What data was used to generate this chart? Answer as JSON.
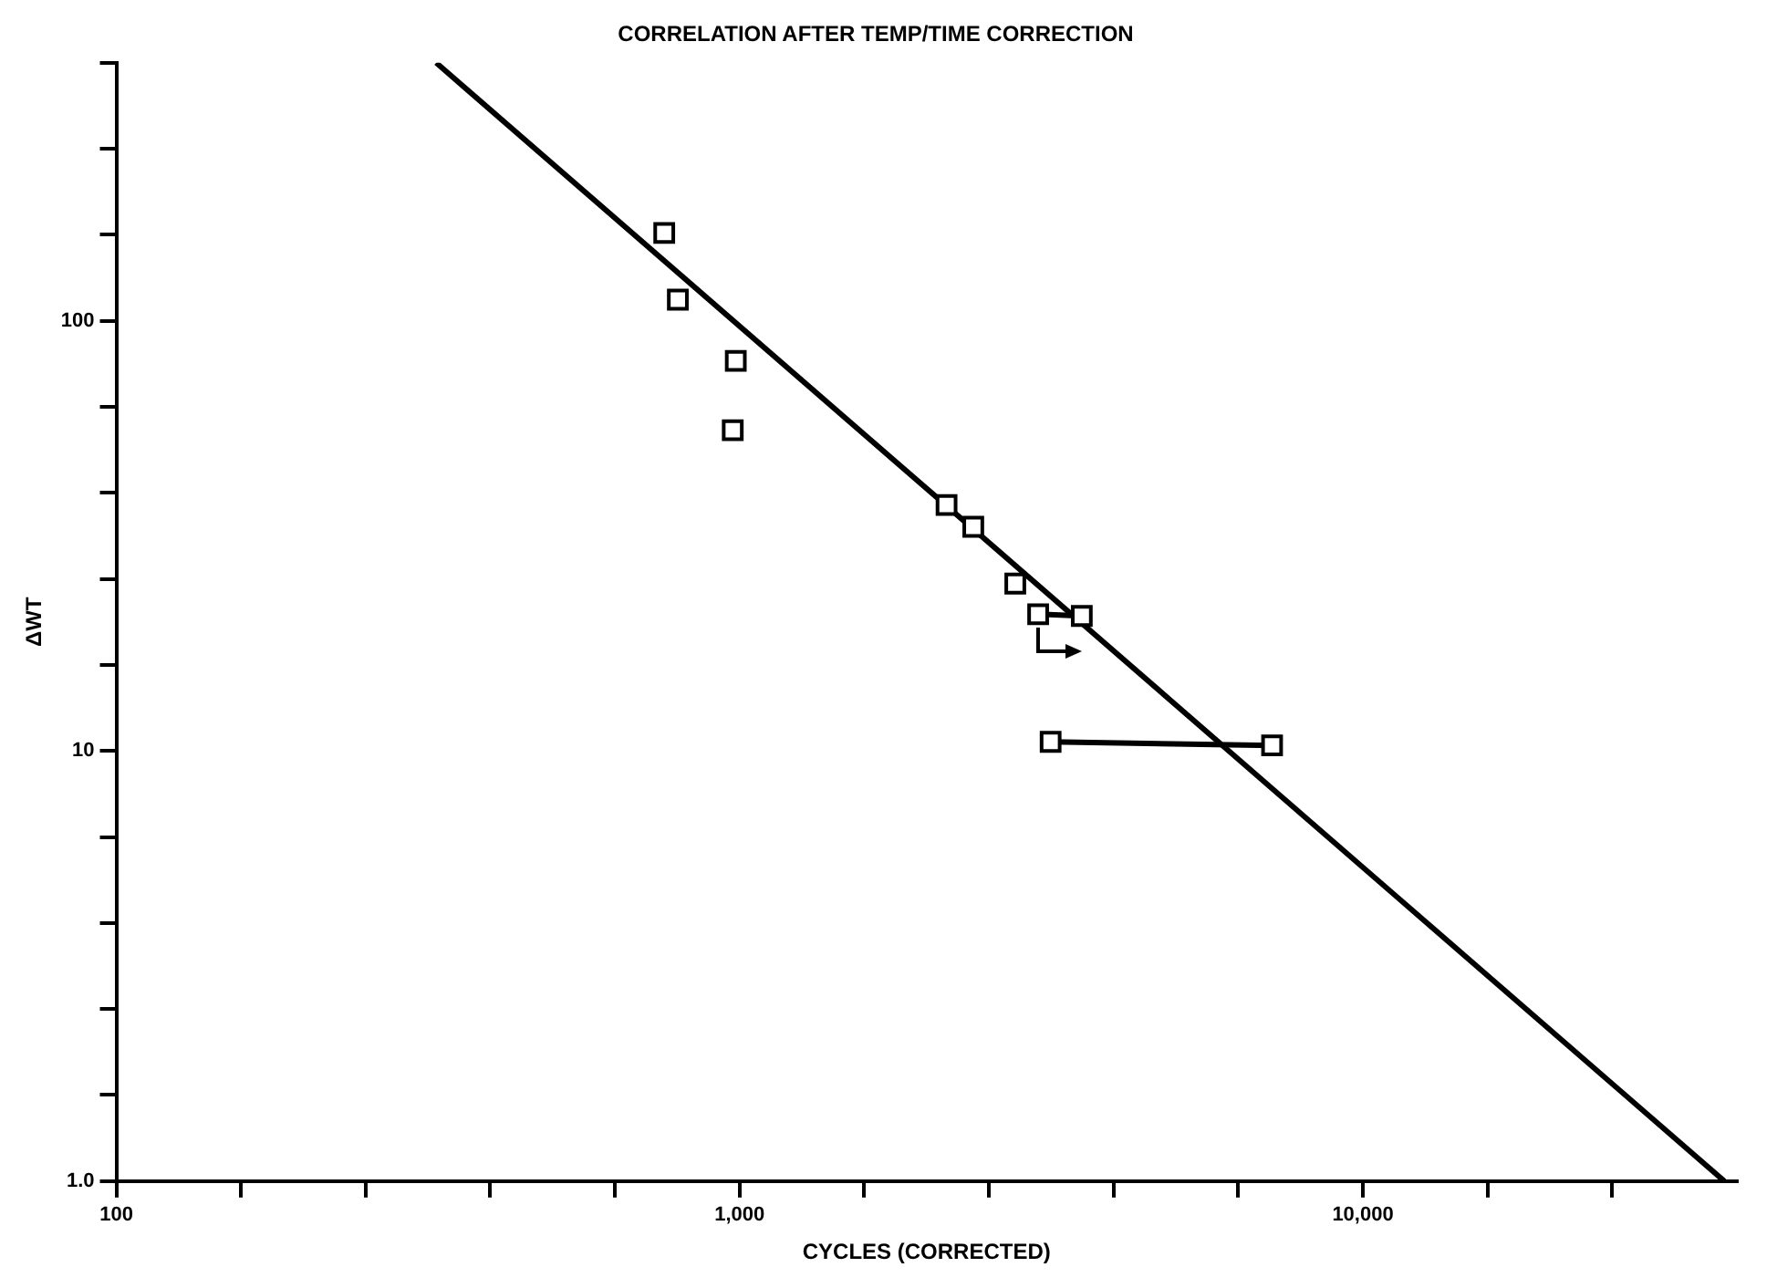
{
  "chart_data": {
    "type": "scatter",
    "title": "CORRELATION AFTER TEMP/TIME CORRECTION",
    "xlabel": "CYCLES (CORRECTED)",
    "ylabel": "ΔWT",
    "log": "xy",
    "marker": "square",
    "legend": false,
    "xlim": [
      100,
      39811
    ],
    "ylim": [
      1,
      398.1
    ],
    "xticks": [
      {
        "value": 100,
        "label": "100"
      },
      {
        "value": 158.5,
        "label": null
      },
      {
        "value": 251.2,
        "label": null
      },
      {
        "value": 398.1,
        "label": null
      },
      {
        "value": 631,
        "label": null
      },
      {
        "value": 1000,
        "label": "1,000"
      },
      {
        "value": 1585,
        "label": null
      },
      {
        "value": 2512,
        "label": null
      },
      {
        "value": 3981,
        "label": null
      },
      {
        "value": 6310,
        "label": null
      },
      {
        "value": 10000,
        "label": "10,000"
      },
      {
        "value": 15849,
        "label": null
      },
      {
        "value": 25119,
        "label": null
      }
    ],
    "yticks": [
      {
        "value": 1,
        "label": "1.0"
      },
      {
        "value": 1.585,
        "label": null
      },
      {
        "value": 2.512,
        "label": null
      },
      {
        "value": 3.981,
        "label": null
      },
      {
        "value": 6.31,
        "label": null
      },
      {
        "value": 10,
        "label": "10"
      },
      {
        "value": 15.85,
        "label": null
      },
      {
        "value": 25.12,
        "label": null
      },
      {
        "value": 39.81,
        "label": null
      },
      {
        "value": 63.1,
        "label": null
      },
      {
        "value": 100,
        "label": "100"
      },
      {
        "value": 158.5,
        "label": null
      },
      {
        "value": 251.2,
        "label": null
      },
      {
        "value": 398.1,
        "label": null
      }
    ],
    "series": [
      {
        "color": "#000000",
        "x": [
          757,
          796,
          986,
          975,
          2148,
          2371,
          2769,
          3013,
          3540,
          3155,
          7150
        ],
        "values": [
          160,
          112,
          80.7,
          55.7,
          37.3,
          33.2,
          24.5,
          20.8,
          20.6,
          10.5,
          10.3
        ]
      },
      {
        "type": "line",
        "marker": "none",
        "color": "#000000",
        "x": [
          326,
          38000
        ],
        "values": [
          398,
          1
        ]
      },
      {
        "type": "line",
        "marker": "none",
        "color": "#000000",
        "x": [
          3013,
          3540
        ],
        "values": [
          20.8,
          20.6
        ]
      },
      {
        "type": "line",
        "marker": "none",
        "color": "#000000",
        "x": [
          3155,
          7150
        ],
        "values": [
          10.5,
          10.3
        ]
      }
    ]
  }
}
